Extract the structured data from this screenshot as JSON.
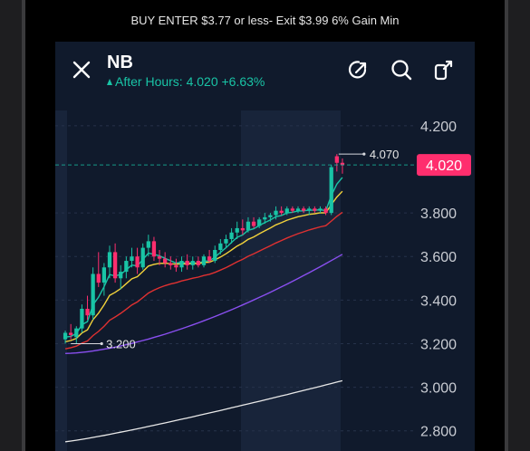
{
  "caption": "BUY ENTER $3.77 or less- Exit $3.99 6% Gain Min",
  "header": {
    "symbol": "NB",
    "after_hours": "After Hours: 4.020 +6.63%",
    "icons": [
      "close-icon",
      "draw-icon",
      "search-icon",
      "share-icon"
    ]
  },
  "colors": {
    "background": "#101a2c",
    "up": "#19c4a6",
    "down": "#ff2e6e",
    "ema_fast": "#19c4a6",
    "ema_mid": "#f2d23b",
    "ema_slow": "#e03131",
    "ma_purple": "#8a4ff0",
    "ma_white": "#e8e8e8"
  },
  "chart_data": {
    "type": "line",
    "y_axis": {
      "ticks": [
        "4.200",
        "3.800",
        "3.600",
        "3.400",
        "3.200",
        "3.000",
        "2.800"
      ],
      "range": [
        2.72,
        4.27
      ]
    },
    "last_price": "4.020",
    "last_price_value": 4.02,
    "high_label": "4.070",
    "high_value": 4.07,
    "low_label": "3.200",
    "low_value": 3.2,
    "candles": [
      [
        3.22,
        3.26,
        3.2,
        3.25
      ],
      [
        3.25,
        3.29,
        3.22,
        3.24
      ],
      [
        3.23,
        3.28,
        3.2,
        3.27
      ],
      [
        3.27,
        3.38,
        3.25,
        3.36
      ],
      [
        3.36,
        3.42,
        3.31,
        3.33
      ],
      [
        3.33,
        3.55,
        3.31,
        3.52
      ],
      [
        3.52,
        3.62,
        3.46,
        3.48
      ],
      [
        3.48,
        3.57,
        3.42,
        3.55
      ],
      [
        3.55,
        3.65,
        3.5,
        3.62
      ],
      [
        3.62,
        3.66,
        3.48,
        3.5
      ],
      [
        3.5,
        3.56,
        3.45,
        3.53
      ],
      [
        3.53,
        3.6,
        3.5,
        3.58
      ],
      [
        3.58,
        3.64,
        3.55,
        3.6
      ],
      [
        3.6,
        3.64,
        3.52,
        3.55
      ],
      [
        3.55,
        3.66,
        3.54,
        3.64
      ],
      [
        3.64,
        3.7,
        3.6,
        3.67
      ],
      [
        3.67,
        3.69,
        3.58,
        3.6
      ],
      [
        3.6,
        3.63,
        3.56,
        3.59
      ],
      [
        3.59,
        3.62,
        3.55,
        3.57
      ],
      [
        3.57,
        3.6,
        3.54,
        3.56
      ],
      [
        3.56,
        3.59,
        3.53,
        3.55
      ],
      [
        3.55,
        3.6,
        3.53,
        3.58
      ],
      [
        3.58,
        3.61,
        3.54,
        3.56
      ],
      [
        3.56,
        3.6,
        3.54,
        3.58
      ],
      [
        3.58,
        3.6,
        3.55,
        3.56
      ],
      [
        3.56,
        3.61,
        3.55,
        3.6
      ],
      [
        3.6,
        3.63,
        3.57,
        3.58
      ],
      [
        3.58,
        3.65,
        3.57,
        3.63
      ],
      [
        3.63,
        3.68,
        3.61,
        3.66
      ],
      [
        3.66,
        3.7,
        3.64,
        3.68
      ],
      [
        3.68,
        3.73,
        3.66,
        3.71
      ],
      [
        3.71,
        3.76,
        3.68,
        3.73
      ],
      [
        3.73,
        3.77,
        3.7,
        3.72
      ],
      [
        3.72,
        3.78,
        3.71,
        3.76
      ],
      [
        3.76,
        3.78,
        3.73,
        3.74
      ],
      [
        3.74,
        3.78,
        3.73,
        3.77
      ],
      [
        3.77,
        3.8,
        3.75,
        3.78
      ],
      [
        3.78,
        3.8,
        3.76,
        3.79
      ],
      [
        3.79,
        3.83,
        3.77,
        3.81
      ],
      [
        3.81,
        3.83,
        3.79,
        3.8
      ],
      [
        3.8,
        3.83,
        3.79,
        3.82
      ],
      [
        3.82,
        3.83,
        3.8,
        3.81
      ],
      [
        3.81,
        3.83,
        3.8,
        3.82
      ],
      [
        3.82,
        3.83,
        3.8,
        3.81
      ],
      [
        3.81,
        3.83,
        3.79,
        3.82
      ],
      [
        3.82,
        3.83,
        3.8,
        3.81
      ],
      [
        3.81,
        3.83,
        3.8,
        3.82
      ],
      [
        3.82,
        3.83,
        3.79,
        3.8
      ],
      [
        3.8,
        4.02,
        3.79,
        4.01
      ],
      [
        4.06,
        4.07,
        3.99,
        4.03
      ],
      [
        4.03,
        4.05,
        3.98,
        4.02
      ]
    ]
  }
}
